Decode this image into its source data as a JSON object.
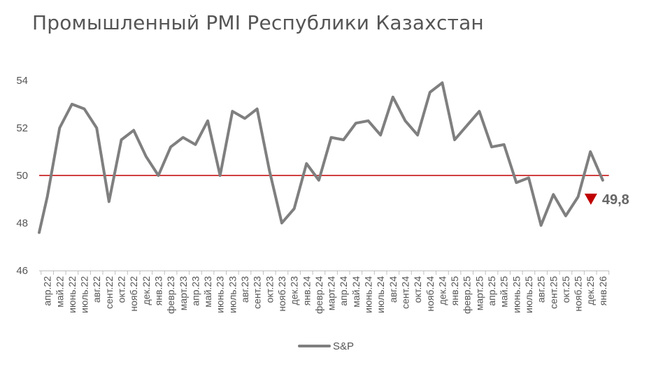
{
  "chart_data": {
    "type": "line",
    "title": "Промышленный PMI Республики Казахстан",
    "xlabel": "",
    "ylabel": "",
    "ylim": [
      46,
      54
    ],
    "yticks": [
      46,
      48,
      50,
      52,
      54
    ],
    "threshold": 50,
    "grid": false,
    "legend_position": "bottom",
    "colors": {
      "series": "#7f7f7f",
      "threshold": "#c00000",
      "marker": "#c00000"
    },
    "x": [
      "апр.22",
      "май.22",
      "июнь.22",
      "июль.22",
      "авг.22",
      "сент.22",
      "окт.22",
      "нояб.22",
      "дек.22",
      "янв.23",
      "февр.23",
      "март.23",
      "апр.23",
      "май.23",
      "июнь.23",
      "июль.23",
      "авг.23",
      "сент.23",
      "окт.23",
      "нояб.23",
      "дек.23",
      "янв.24",
      "февр.24",
      "март.24",
      "апр.24",
      "май.24",
      "июнь.24",
      "июль.24",
      "авг.24",
      "сент.24",
      "окт.24",
      "нояб.24",
      "дек.24",
      "янв.25",
      "февр.25",
      "март.25",
      "апр.25",
      "май.25",
      "июнь.25",
      "июль.25",
      "авг.25",
      "сент.25",
      "окт.25",
      "нояб.25",
      "дек.25",
      "янв.26"
    ],
    "series": [
      {
        "name": "S&P",
        "start_value": 47.6,
        "values": [
          49.1,
          52.0,
          53.0,
          52.8,
          52.0,
          48.9,
          51.5,
          51.9,
          50.8,
          50.0,
          51.2,
          51.6,
          51.3,
          52.3,
          50.0,
          52.7,
          52.4,
          52.8,
          50.2,
          48.0,
          48.6,
          50.5,
          49.8,
          51.6,
          51.5,
          52.2,
          52.3,
          51.7,
          53.3,
          52.3,
          51.7,
          53.5,
          53.9,
          51.5,
          52.1,
          52.7,
          51.2,
          51.3,
          49.7,
          49.9,
          47.9,
          49.2,
          48.3,
          49.1,
          51.0,
          49.8
        ]
      }
    ],
    "annotations": [
      {
        "text": "49,8",
        "marker": "down-triangle"
      }
    ]
  }
}
